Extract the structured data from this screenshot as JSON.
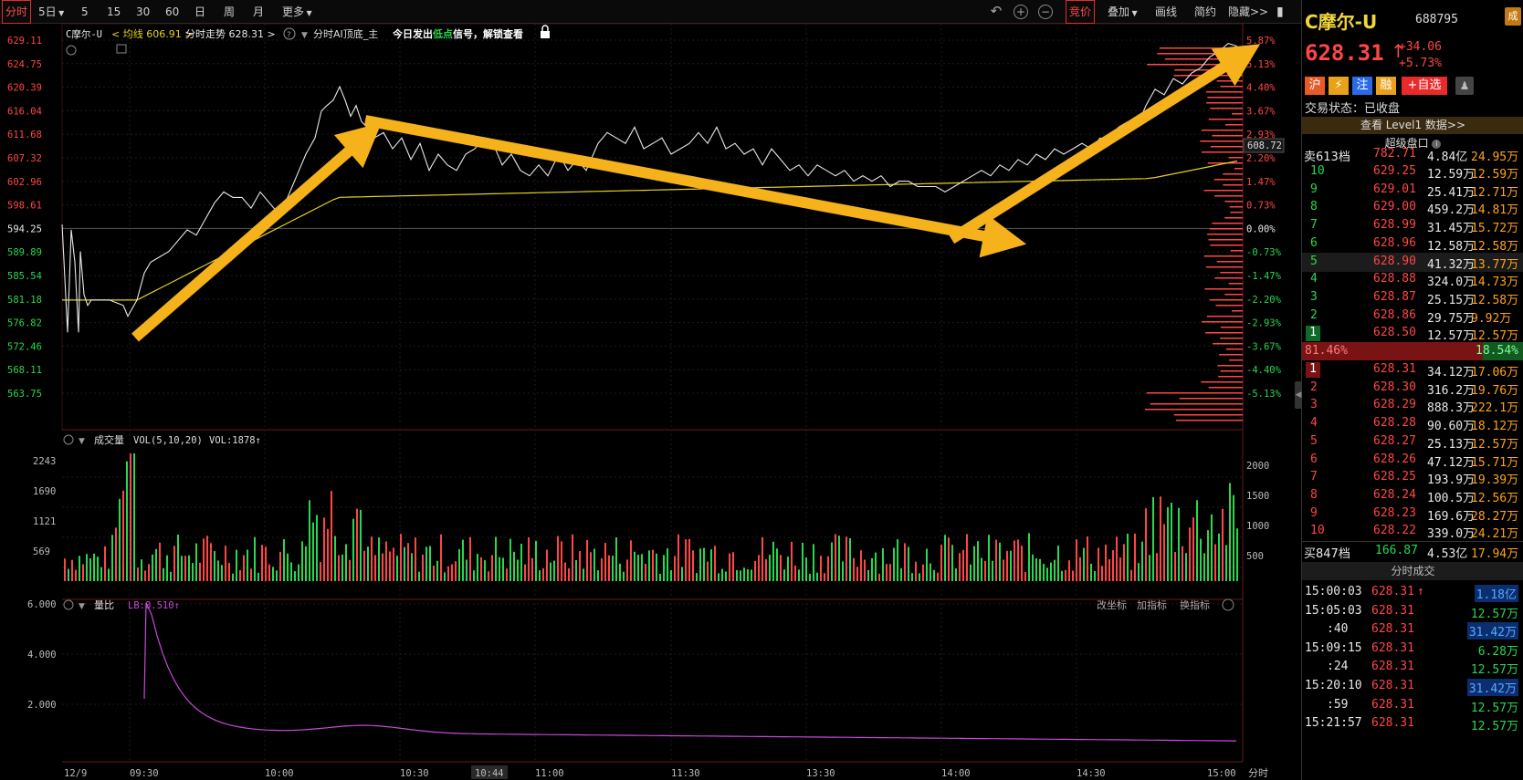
{
  "toolbar": {
    "periods": [
      "分时",
      "5日",
      "5",
      "15",
      "30",
      "60",
      "日",
      "周",
      "月",
      "更多"
    ],
    "active_period": "分时",
    "right_buttons": [
      "竞价",
      "叠加",
      "画线",
      "简约",
      "隐藏>>"
    ]
  },
  "chart_header": {
    "name": "C摩尔-U",
    "avg_label": "均线",
    "avg_value": "606.91",
    "trend_label": "分时走势",
    "trend_value": "628.31",
    "ai_text": "分时AI顶底_主",
    "signal_prefix": "今日发出",
    "signal_key": "低点",
    "signal_suffix": "信号，解锁查看"
  },
  "price_axis": {
    "left_labels": [
      "629.11",
      "624.75",
      "620.39",
      "616.04",
      "611.68",
      "607.32",
      "602.96",
      "598.61",
      "594.25",
      "589.89",
      "585.54",
      "581.18",
      "576.82",
      "572.46",
      "568.11",
      "563.75"
    ],
    "right_labels": [
      "5.87%",
      "5.13%",
      "4.40%",
      "3.67%",
      "2.93%",
      "2.20%",
      "1.47%",
      "0.73%",
      "0.00%",
      "-0.73%",
      "-1.47%",
      "-2.20%",
      "-2.93%",
      "-3.67%",
      "-4.40%",
      "-5.13%"
    ],
    "reference_price": "594.25",
    "current_marker": "608.72"
  },
  "volume_panel": {
    "title": "成交量",
    "params": "VOL(5,10,20)",
    "vol_label": "VOL:1878↑",
    "left_labels": [
      "2243",
      "1690",
      "1121",
      "569"
    ],
    "right_labels": [
      "2000",
      "1500",
      "1000",
      "500"
    ]
  },
  "ratio_panel": {
    "title": "量比",
    "lb_label": "LB:0.510↑",
    "left_labels": [
      "6.000",
      "4.000",
      "2.000"
    ],
    "actions": [
      "改坐标",
      "加指标",
      "换指标"
    ]
  },
  "time_axis": {
    "labels": [
      "12/9",
      "09:30",
      "10:00",
      "10:30",
      "10:44",
      "11:00",
      "11:30",
      "13:30",
      "14:00",
      "14:30",
      "15:00"
    ],
    "unit": "分时"
  },
  "panel": {
    "name": "C摩尔-U",
    "code": "688795",
    "price": "628.31",
    "arrow": "↑",
    "change": "+34.06",
    "change_pct": "+5.73%",
    "tags": [
      "沪",
      "⚡",
      "注",
      "融"
    ],
    "watch_btn": "+自选",
    "status_label": "交易状态：",
    "status_value": "已收盘",
    "level1_text": "查看 Level1 数据>>",
    "super_label": "超级盘口",
    "sell_total_label": "卖613档",
    "sell_total_price": "782.71",
    "sell_total_vol": "4.84亿",
    "sell_total_amt": "24.95万",
    "asks": [
      {
        "lvl": "10",
        "price": "629.25",
        "vol": "12.59万",
        "amt": "12.59万"
      },
      {
        "lvl": "9",
        "price": "629.01",
        "vol": "25.41万",
        "amt": "12.71万"
      },
      {
        "lvl": "8",
        "price": "629.00",
        "vol": "459.2万",
        "amt": "14.81万"
      },
      {
        "lvl": "7",
        "price": "628.99",
        "vol": "31.45万",
        "amt": "15.72万"
      },
      {
        "lvl": "6",
        "price": "628.96",
        "vol": "12.58万",
        "amt": "12.58万"
      },
      {
        "lvl": "5",
        "price": "628.90",
        "vol": "41.32万",
        "amt": "13.77万"
      },
      {
        "lvl": "4",
        "price": "628.88",
        "vol": "324.0万",
        "amt": "14.73万"
      },
      {
        "lvl": "3",
        "price": "628.87",
        "vol": "25.15万",
        "amt": "12.58万"
      },
      {
        "lvl": "2",
        "price": "628.86",
        "vol": "29.75万",
        "amt": "9.92万"
      },
      {
        "lvl": "1",
        "price": "628.50",
        "vol": "12.57万",
        "amt": "12.57万"
      }
    ],
    "ratio_left": "81.46%",
    "ratio_right": "18.54%",
    "bids": [
      {
        "lvl": "1",
        "price": "628.31",
        "vol": "34.12万",
        "amt": "17.06万"
      },
      {
        "lvl": "2",
        "price": "628.30",
        "vol": "316.2万",
        "amt": "19.76万"
      },
      {
        "lvl": "3",
        "price": "628.29",
        "vol": "888.3万",
        "amt": "222.1万"
      },
      {
        "lvl": "4",
        "price": "628.28",
        "vol": "90.60万",
        "amt": "18.12万"
      },
      {
        "lvl": "5",
        "price": "628.27",
        "vol": "25.13万",
        "amt": "12.57万"
      },
      {
        "lvl": "6",
        "price": "628.26",
        "vol": "47.12万",
        "amt": "15.71万"
      },
      {
        "lvl": "7",
        "price": "628.25",
        "vol": "193.9万",
        "amt": "19.39万"
      },
      {
        "lvl": "8",
        "price": "628.24",
        "vol": "100.5万",
        "amt": "12.56万"
      },
      {
        "lvl": "9",
        "price": "628.23",
        "vol": "169.6万",
        "amt": "28.27万"
      },
      {
        "lvl": "10",
        "price": "628.22",
        "vol": "339.0万",
        "amt": "24.21万"
      }
    ],
    "buy_total_label": "买847档",
    "buy_total_price": "166.87",
    "buy_total_vol": "4.53亿",
    "buy_total_amt": "17.94万",
    "trades_title": "分时成交",
    "trades": [
      {
        "time": "15:00:03",
        "price": "628.31",
        "arrow": "↑",
        "vol": "1.18亿",
        "hl": true,
        "color": "blue"
      },
      {
        "time": "15:05:03",
        "price": "628.31",
        "arrow": "",
        "vol": "12.57万",
        "hl": false,
        "color": "green"
      },
      {
        "time": ":40",
        "price": "628.31",
        "arrow": "",
        "vol": "31.42万",
        "hl": true,
        "color": "blue"
      },
      {
        "time": "15:09:15",
        "price": "628.31",
        "arrow": "",
        "vol": "6.28万",
        "hl": false,
        "color": "green"
      },
      {
        "time": ":24",
        "price": "628.31",
        "arrow": "",
        "vol": "12.57万",
        "hl": false,
        "color": "green"
      },
      {
        "time": "15:20:10",
        "price": "628.31",
        "arrow": "",
        "vol": "31.42万",
        "hl": true,
        "color": "blue"
      },
      {
        "time": ":59",
        "price": "628.31",
        "arrow": "",
        "vol": "12.57万",
        "hl": false,
        "color": "green"
      },
      {
        "time": "15:21:57",
        "price": "628.31",
        "arrow": "",
        "vol": "12.57万",
        "hl": false,
        "color": "green"
      }
    ]
  },
  "colors": {
    "up": "#ff4646",
    "down": "#28d84e",
    "price_line": "#e8e8e8",
    "avg_line": "#e6d21a",
    "arrow": "#f5b21a",
    "ratio_line": "#c848d8"
  }
}
